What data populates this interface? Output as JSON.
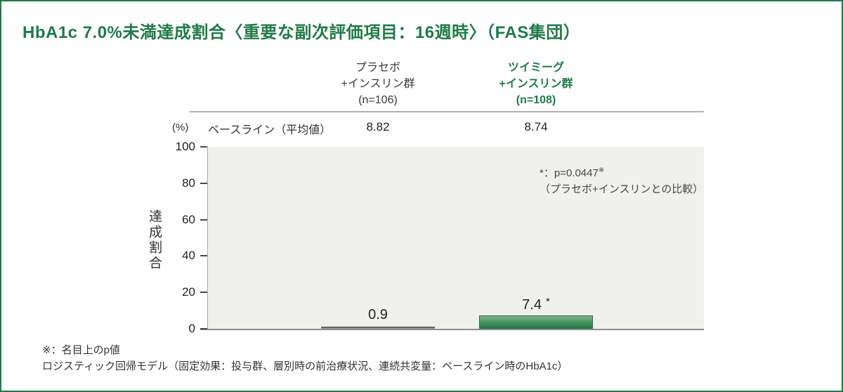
{
  "accent": "#1f7b47",
  "title": "HbA1c 7.0%未満達成割合〈重要な副次評価項目：16週時〉（FAS集団）",
  "axis": {
    "unit": "(%)",
    "title": "達成割合"
  },
  "baseline": {
    "label": "ベースライン（平均値）"
  },
  "groups": [
    {
      "name_lines": [
        "プラセボ",
        "+インスリン群",
        "(n=106)"
      ],
      "baseline": "8.82",
      "value_label": "0.9",
      "star": ""
    },
    {
      "name_lines": [
        "ツイミーグ",
        "+インスリン群",
        "(n=108)"
      ],
      "baseline": "8.74",
      "value_label": "7.4",
      "star": "*"
    }
  ],
  "annotation": {
    "line1": "*：p=0.0447",
    "line1_sup": "※",
    "line2": "（プラセボ+インスリンとの比較）"
  },
  "footnotes": [
    "※：名目上のp値",
    "ロジスティック回帰モデル（固定効果：投与群、層別時の前治療状況、連続共変量：ベースライン時のHbA1c）"
  ],
  "chart_data": {
    "type": "bar",
    "title": "HbA1c 7.0%未満達成割合〈重要な副次評価項目：16週時〉（FAS集団）",
    "categories": [
      "プラセボ+インスリン群 (n=106)",
      "ツイミーグ+インスリン群 (n=108)"
    ],
    "values": [
      0.9,
      7.4
    ],
    "baseline_mean": [
      8.82,
      8.74
    ],
    "value_annotations": [
      "",
      "*"
    ],
    "xlabel": "",
    "ylabel": "達成割合",
    "y_unit": "(%)",
    "ylim": [
      0,
      100
    ],
    "yticks": [
      0,
      20,
      40,
      60,
      80,
      100
    ],
    "grid": false,
    "legend_position": "none",
    "plot_background": "#f0f1ed",
    "bar_colors": [
      "#6b6b6b",
      "#2e8049"
    ],
    "annotation_text": "*：p=0.0447※（プラセボ+インスリンとの比較）"
  }
}
